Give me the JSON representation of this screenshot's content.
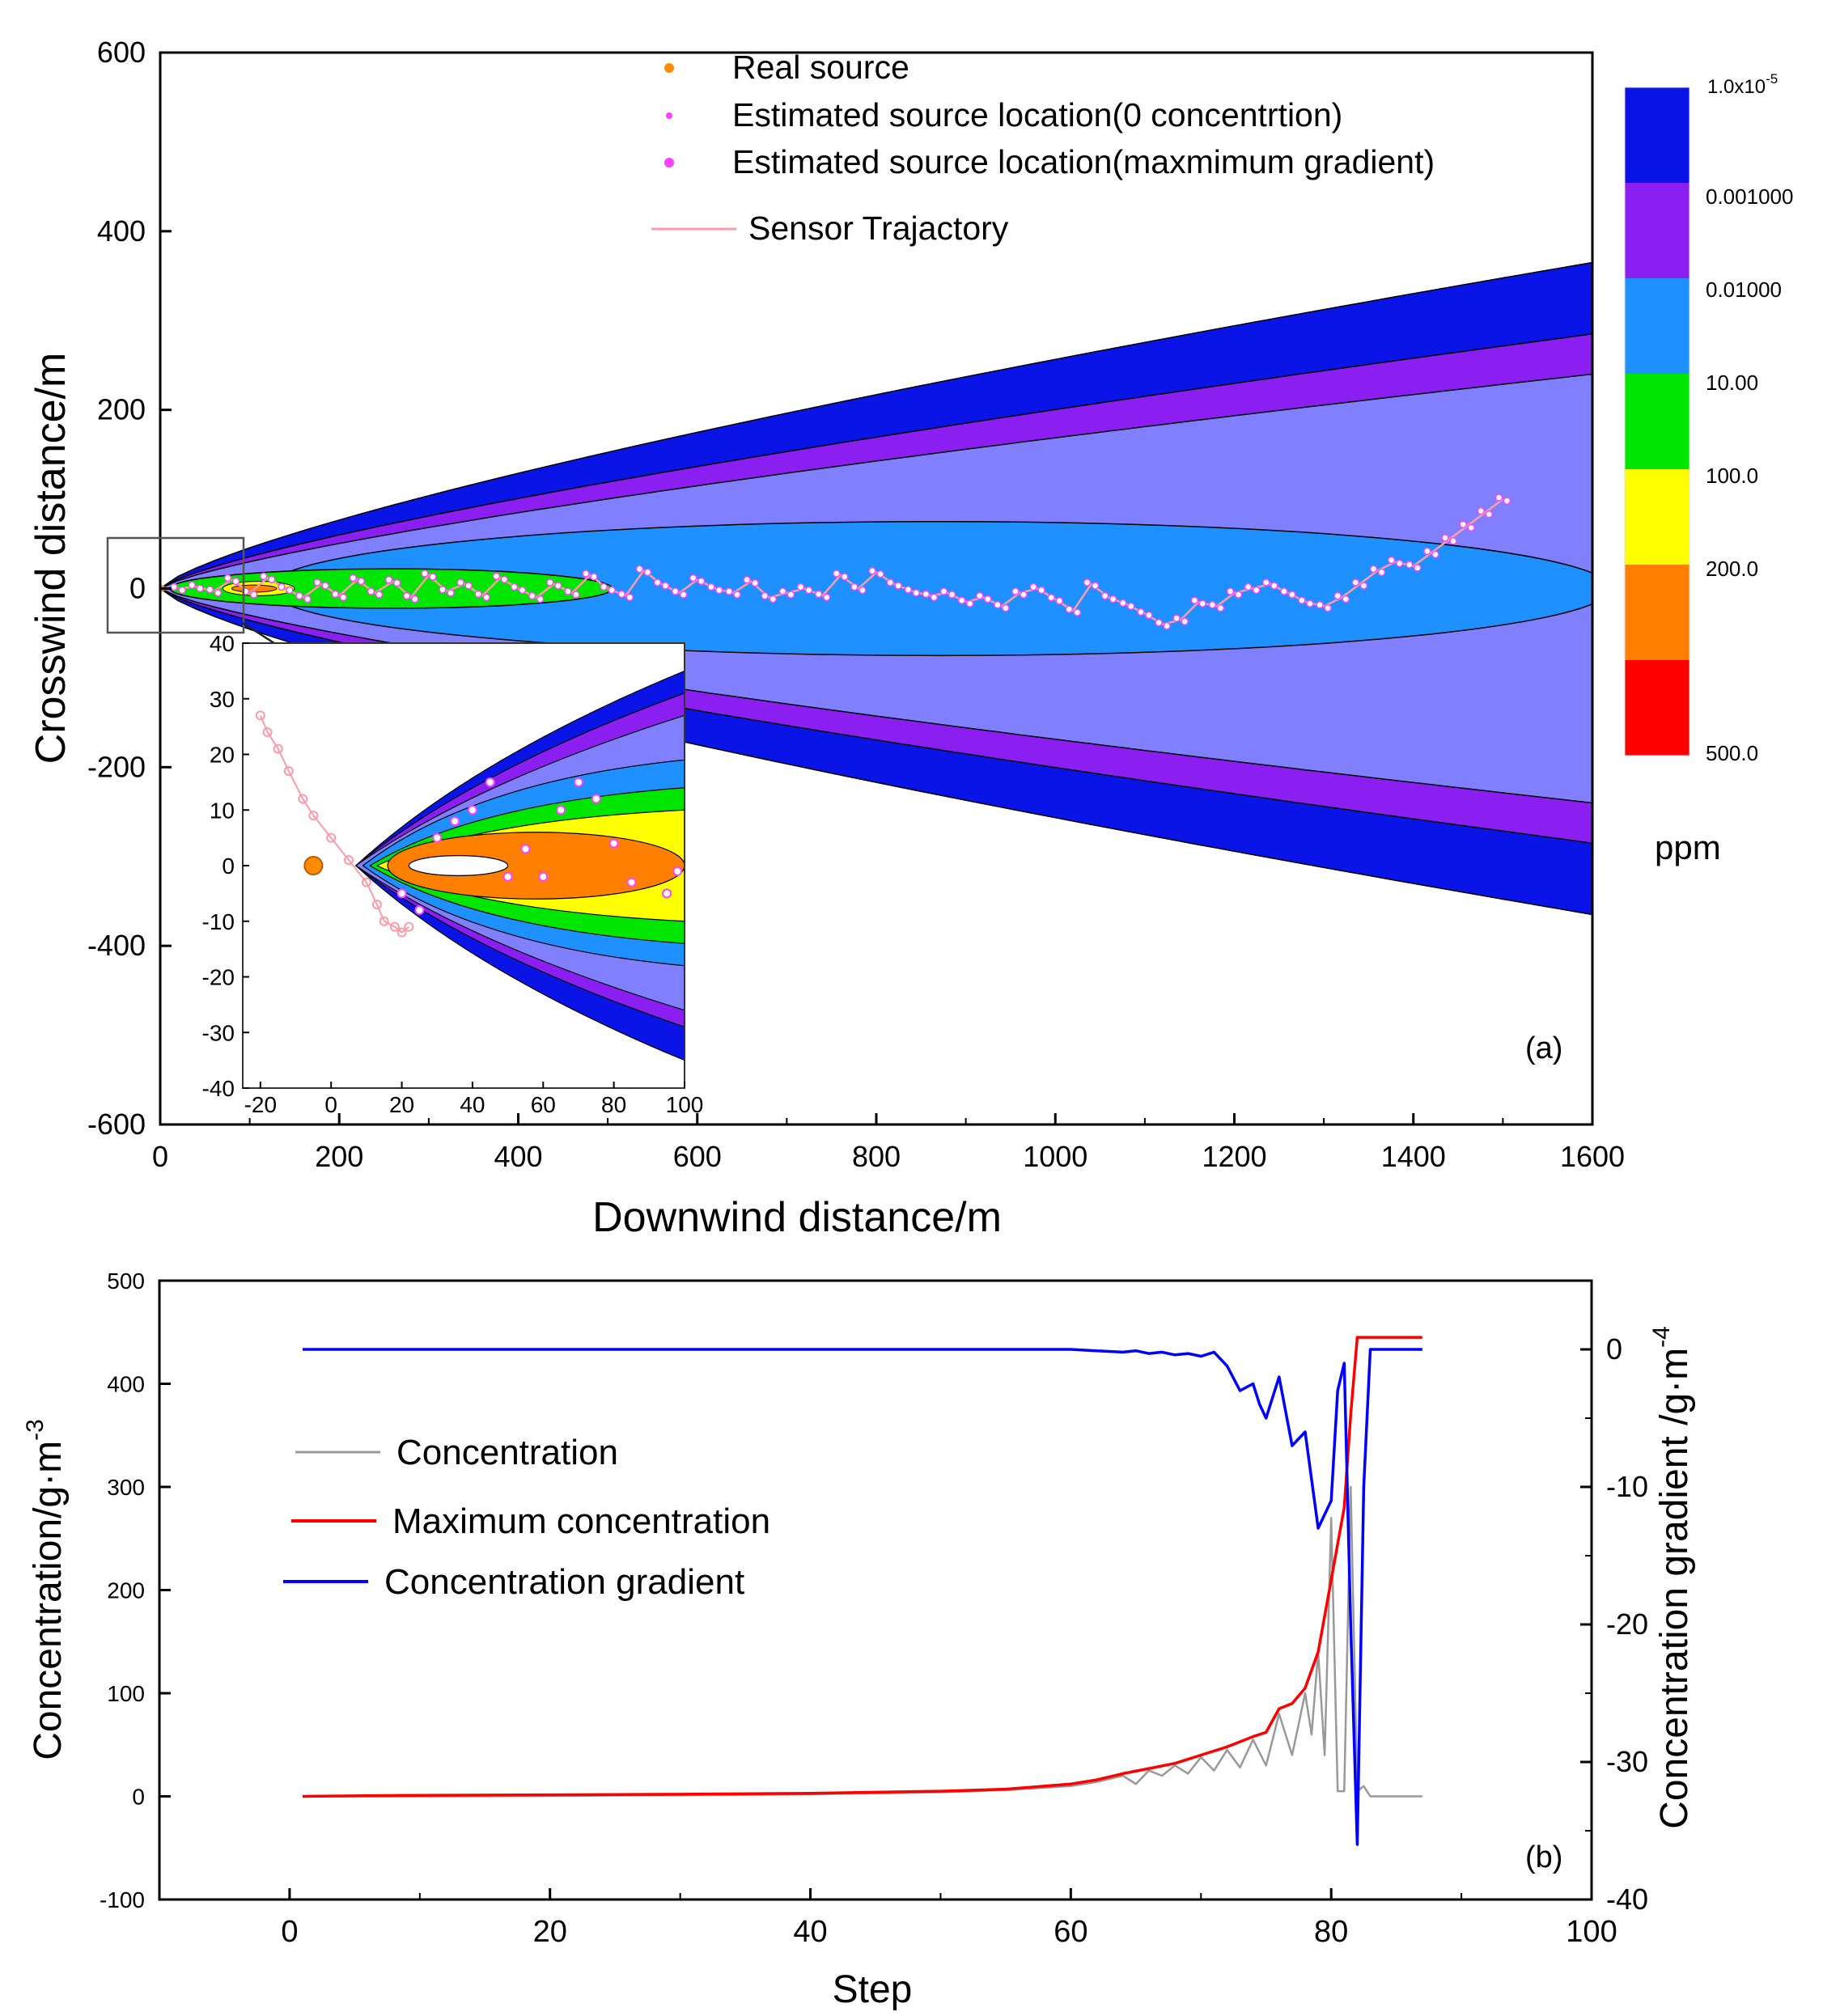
{
  "chart_data": [
    {
      "type": "contour",
      "panel_label": "(a)",
      "xlabel": "Downwind distance/m",
      "ylabel": "Crosswind distance/m",
      "xlim": [
        0,
        1600
      ],
      "ylim": [
        -600,
        600
      ],
      "xticks": [
        "0",
        "200",
        "400",
        "600",
        "800",
        "1000",
        "1200",
        "1400",
        "1600"
      ],
      "yticks": [
        "600",
        "400",
        "200",
        "0",
        "-200",
        "-400",
        "-600"
      ],
      "colors": {
        "band_outer": "#0a14e6",
        "band_purple": "#8b1ef0",
        "band_lavender": "#8080ff",
        "band_blue": "#1e90ff",
        "band_green": "#00e600",
        "band_yellow": "#ffff00",
        "band_orange": "#ff8000",
        "band_red": "#ff0000",
        "trajectory": "#ff9aa8",
        "real_source": "#ff8c00",
        "estimated": "#ff40ff"
      },
      "plume_half_width_at_1600": [
        365,
        285,
        240,
        65
      ],
      "legend": [
        {
          "label": "Real source",
          "marker": "dot-orange"
        },
        {
          "label": "Estimated source location(0 concentrtion)",
          "marker": "dot-magenta-small"
        },
        {
          "label": "Estimated source location(maxmimum gradient)",
          "marker": "dot-magenta"
        },
        {
          "label": "Sensor Trajactory",
          "marker": "line-pink"
        }
      ],
      "colorbar": {
        "labels": [
          "1.0x10",
          "0.001000",
          "0.01000",
          "10.00",
          "100.0",
          "200.0",
          "500.0"
        ],
        "first_exp": "-5",
        "unit": "ppm",
        "colors": [
          "#0a14e6",
          "#8b1ef0",
          "#1e90ff",
          "#00e600",
          "#ffff00",
          "#ff8000",
          "#ff0000"
        ]
      },
      "trajectory": [
        [
          20,
          0
        ],
        [
          40,
          2
        ],
        [
          60,
          -3
        ],
        [
          80,
          10
        ],
        [
          100,
          -5
        ],
        [
          120,
          12
        ],
        [
          140,
          0
        ],
        [
          160,
          -10
        ],
        [
          180,
          5
        ],
        [
          200,
          -8
        ],
        [
          220,
          10
        ],
        [
          240,
          -5
        ],
        [
          260,
          8
        ],
        [
          280,
          -10
        ],
        [
          300,
          15
        ],
        [
          320,
          -3
        ],
        [
          340,
          5
        ],
        [
          360,
          -8
        ],
        [
          380,
          12
        ],
        [
          400,
          0
        ],
        [
          420,
          -10
        ],
        [
          440,
          5
        ],
        [
          460,
          -5
        ],
        [
          480,
          15
        ],
        [
          500,
          0
        ],
        [
          520,
          -8
        ],
        [
          540,
          20
        ],
        [
          560,
          5
        ],
        [
          580,
          -5
        ],
        [
          600,
          10
        ],
        [
          620,
          0
        ],
        [
          640,
          -5
        ],
        [
          660,
          8
        ],
        [
          680,
          -10
        ],
        [
          700,
          -5
        ],
        [
          720,
          0
        ],
        [
          740,
          -8
        ],
        [
          760,
          15
        ],
        [
          780,
          0
        ],
        [
          800,
          18
        ],
        [
          820,
          5
        ],
        [
          840,
          -3
        ],
        [
          860,
          -8
        ],
        [
          880,
          -5
        ],
        [
          900,
          -15
        ],
        [
          920,
          -10
        ],
        [
          940,
          -20
        ],
        [
          960,
          -5
        ],
        [
          980,
          0
        ],
        [
          1000,
          -12
        ],
        [
          1020,
          -25
        ],
        [
          1040,
          5
        ],
        [
          1060,
          -10
        ],
        [
          1080,
          -18
        ],
        [
          1100,
          -28
        ],
        [
          1120,
          -40
        ],
        [
          1140,
          -35
        ],
        [
          1160,
          -15
        ],
        [
          1180,
          -20
        ],
        [
          1200,
          -5
        ],
        [
          1220,
          0
        ],
        [
          1240,
          5
        ],
        [
          1260,
          -5
        ],
        [
          1280,
          -15
        ],
        [
          1300,
          -20
        ],
        [
          1320,
          -10
        ],
        [
          1340,
          5
        ],
        [
          1360,
          20
        ],
        [
          1380,
          30
        ],
        [
          1400,
          25
        ],
        [
          1420,
          40
        ],
        [
          1440,
          55
        ],
        [
          1460,
          70
        ],
        [
          1480,
          85
        ],
        [
          1500,
          100
        ]
      ],
      "inset": {
        "xlim": [
          -25,
          100
        ],
        "ylim": [
          -40,
          40
        ],
        "xticks": [
          "-20",
          "0",
          "20",
          "40",
          "60",
          "80",
          "100"
        ],
        "yticks": [
          "40",
          "30",
          "20",
          "10",
          "0",
          "-10",
          "-20",
          "-30",
          "-40"
        ],
        "real_source": [
          -5,
          0
        ],
        "trajectory": [
          [
            -20,
            27
          ],
          [
            -18,
            24
          ],
          [
            -15,
            21
          ],
          [
            -12,
            17
          ],
          [
            -8,
            12
          ],
          [
            -5,
            9
          ],
          [
            0,
            5
          ],
          [
            5,
            1
          ],
          [
            10,
            -3
          ],
          [
            13,
            -7
          ],
          [
            15,
            -10
          ],
          [
            18,
            -11
          ],
          [
            20,
            -12
          ],
          [
            22,
            -11
          ]
        ],
        "estimated": [
          [
            20,
            -5
          ],
          [
            25,
            -8
          ],
          [
            30,
            5
          ],
          [
            35,
            8
          ],
          [
            40,
            10
          ],
          [
            45,
            15
          ],
          [
            50,
            -2
          ],
          [
            55,
            3
          ],
          [
            60,
            -2
          ],
          [
            65,
            10
          ],
          [
            70,
            15
          ],
          [
            75,
            12
          ],
          [
            80,
            4
          ],
          [
            85,
            -3
          ],
          [
            95,
            -5
          ],
          [
            98,
            -1
          ]
        ]
      }
    },
    {
      "type": "line",
      "panel_label": "(b)",
      "xlabel": "Step",
      "ylabel": "Concentration/g·m",
      "ylabel_exp": "-3",
      "y2label": "Concentration gradient /g·m",
      "y2label_exp": "-4",
      "xlim": [
        -10,
        100
      ],
      "ylim": [
        -100,
        500
      ],
      "y2lim": [
        -40,
        5
      ],
      "xticks": [
        "0",
        "20",
        "40",
        "60",
        "80",
        "100"
      ],
      "yticks": [
        "500",
        "400",
        "300",
        "200",
        "100",
        "0",
        "-100"
      ],
      "y2ticks": [
        "0",
        "-10",
        "-20",
        "-30",
        "-40"
      ],
      "series": [
        {
          "name": "Concentration",
          "color": "#999999",
          "axis": "left",
          "points": [
            [
              1,
              0
            ],
            [
              10,
              0
            ],
            [
              20,
              0.5
            ],
            [
              30,
              1
            ],
            [
              40,
              2
            ],
            [
              50,
              4
            ],
            [
              55,
              6
            ],
            [
              60,
              10
            ],
            [
              62,
              14
            ],
            [
              64,
              20
            ],
            [
              65,
              12
            ],
            [
              66,
              25
            ],
            [
              67,
              20
            ],
            [
              68,
              30
            ],
            [
              69,
              22
            ],
            [
              70,
              38
            ],
            [
              71,
              25
            ],
            [
              72,
              45
            ],
            [
              73,
              28
            ],
            [
              74,
              55
            ],
            [
              75,
              30
            ],
            [
              76,
              80
            ],
            [
              77,
              40
            ],
            [
              78,
              100
            ],
            [
              78.5,
              60
            ],
            [
              79,
              140
            ],
            [
              79.5,
              40
            ],
            [
              80,
              270
            ],
            [
              80.5,
              5
            ],
            [
              81,
              5
            ],
            [
              81.5,
              300
            ],
            [
              82,
              5
            ],
            [
              82.5,
              10
            ],
            [
              83,
              0
            ],
            [
              87,
              0
            ]
          ]
        },
        {
          "name": "Maximum concentration",
          "color": "#ff0000",
          "axis": "left",
          "points": [
            [
              1,
              0
            ],
            [
              10,
              1
            ],
            [
              20,
              1.5
            ],
            [
              30,
              2
            ],
            [
              40,
              3
            ],
            [
              50,
              5
            ],
            [
              55,
              7
            ],
            [
              60,
              12
            ],
            [
              62,
              16
            ],
            [
              64,
              22
            ],
            [
              66,
              27
            ],
            [
              68,
              32
            ],
            [
              70,
              40
            ],
            [
              72,
              48
            ],
            [
              74,
              58
            ],
            [
              75,
              62
            ],
            [
              76,
              85
            ],
            [
              77,
              90
            ],
            [
              78,
              105
            ],
            [
              79,
              140
            ],
            [
              80,
              210
            ],
            [
              81,
              280
            ],
            [
              81.5,
              370
            ],
            [
              82,
              445
            ],
            [
              87,
              445
            ]
          ]
        },
        {
          "name": "Concentration gradient",
          "color": "#0000ff",
          "axis": "right",
          "points": [
            [
              1,
              0
            ],
            [
              10,
              0
            ],
            [
              20,
              0
            ],
            [
              30,
              0
            ],
            [
              40,
              0
            ],
            [
              50,
              0
            ],
            [
              55,
              0
            ],
            [
              60,
              0
            ],
            [
              62,
              -0.1
            ],
            [
              64,
              -0.2
            ],
            [
              65,
              -0.1
            ],
            [
              66,
              -0.3
            ],
            [
              67,
              -0.2
            ],
            [
              68,
              -0.4
            ],
            [
              69,
              -0.3
            ],
            [
              70,
              -0.5
            ],
            [
              71,
              -0.2
            ],
            [
              72,
              -1.2
            ],
            [
              73,
              -3
            ],
            [
              74,
              -2.5
            ],
            [
              74.5,
              -4
            ],
            [
              75,
              -5
            ],
            [
              76,
              -2
            ],
            [
              77,
              -7
            ],
            [
              78,
              -6
            ],
            [
              79,
              -13
            ],
            [
              80,
              -11
            ],
            [
              80.5,
              -3
            ],
            [
              81,
              -1
            ],
            [
              81.5,
              -20
            ],
            [
              82,
              -36
            ],
            [
              82.5,
              -10
            ],
            [
              83,
              0
            ],
            [
              87,
              0
            ]
          ]
        }
      ]
    }
  ]
}
